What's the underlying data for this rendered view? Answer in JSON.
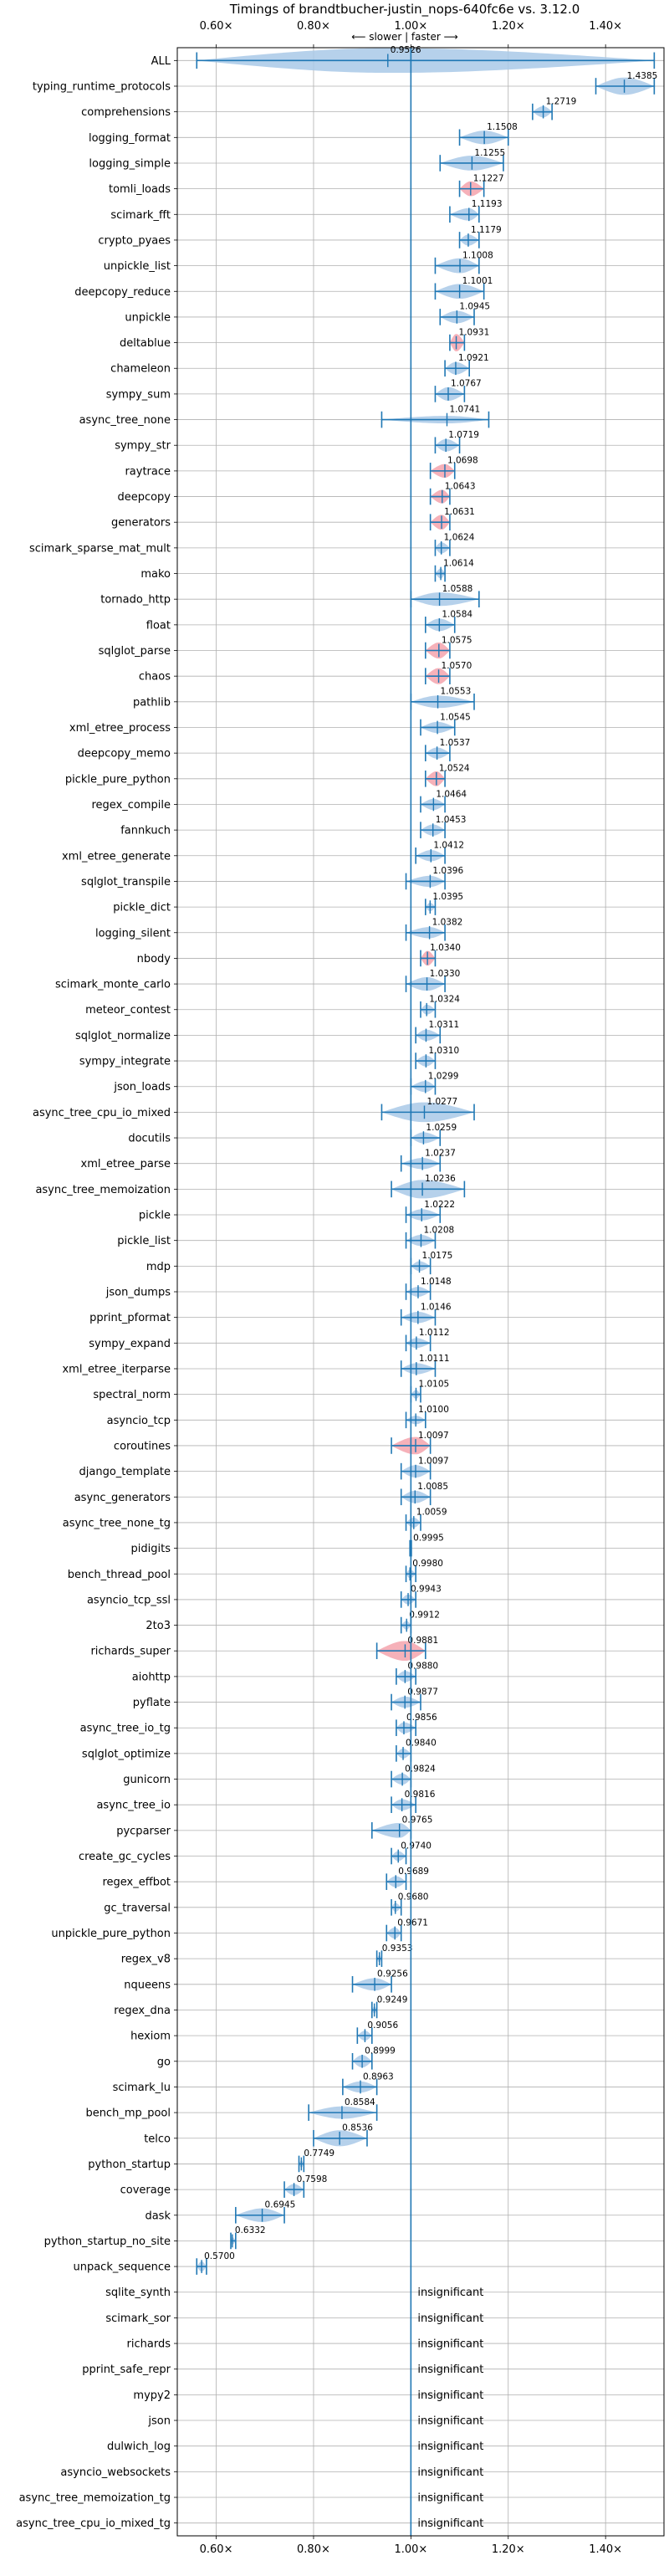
{
  "chart_data": {
    "type": "violin",
    "title": "Timings of brandtbucher-justin_nops-640fc6e vs. 3.12.0",
    "direction_label": "⟵ slower | faster ⟶",
    "xlim": [
      0.52,
      1.52
    ],
    "x_ticks": [
      0.6,
      0.8,
      1.0,
      1.2,
      1.4
    ],
    "x_tick_labels": [
      "0.60×",
      "0.80×",
      "1.00×",
      "1.20×",
      "1.40×"
    ],
    "reference_line": 1.0,
    "grid": true,
    "insignificant_label": "insignificant",
    "colors": {
      "violin": "#a9c9e8",
      "violin_regression": "#f5a3ad",
      "whisker": "#1f77b4",
      "grid": "#b0b0b0"
    },
    "benchmarks": [
      {
        "name": "ALL",
        "value": 0.9526,
        "label": "0.9526",
        "lo": 0.56,
        "hi": 1.5,
        "w": 1.0,
        "regression": false
      },
      {
        "name": "typing_runtime_protocols",
        "value": 1.4385,
        "label": "1.4385",
        "lo": 1.38,
        "hi": 1.5,
        "w": 0.7,
        "regression": false
      },
      {
        "name": "comprehensions",
        "value": 1.2719,
        "label": "1.2719",
        "lo": 1.25,
        "hi": 1.29,
        "w": 0.45,
        "regression": false
      },
      {
        "name": "logging_format",
        "value": 1.1508,
        "label": "1.1508",
        "lo": 1.1,
        "hi": 1.2,
        "w": 0.55,
        "regression": false
      },
      {
        "name": "logging_simple",
        "value": 1.1255,
        "label": "1.1255",
        "lo": 1.06,
        "hi": 1.19,
        "w": 0.6,
        "regression": false
      },
      {
        "name": "tomli_loads",
        "value": 1.1227,
        "label": "1.1227",
        "lo": 1.1,
        "hi": 1.15,
        "w": 0.6,
        "regression": true
      },
      {
        "name": "scimark_fft",
        "value": 1.1193,
        "label": "1.1193",
        "lo": 1.08,
        "hi": 1.14,
        "w": 0.5,
        "regression": false
      },
      {
        "name": "crypto_pyaes",
        "value": 1.1179,
        "label": "1.1179",
        "lo": 1.1,
        "hi": 1.14,
        "w": 0.45,
        "regression": false
      },
      {
        "name": "unpickle_list",
        "value": 1.1008,
        "label": "1.1008",
        "lo": 1.05,
        "hi": 1.14,
        "w": 0.6,
        "regression": false
      },
      {
        "name": "deepcopy_reduce",
        "value": 1.1001,
        "label": "1.1001",
        "lo": 1.05,
        "hi": 1.15,
        "w": 0.6,
        "regression": false
      },
      {
        "name": "unpickle",
        "value": 1.0945,
        "label": "1.0945",
        "lo": 1.06,
        "hi": 1.13,
        "w": 0.5,
        "regression": false
      },
      {
        "name": "deltablue",
        "value": 1.0931,
        "label": "1.0931",
        "lo": 1.08,
        "hi": 1.11,
        "w": 0.7,
        "regression": true
      },
      {
        "name": "chameleon",
        "value": 1.0921,
        "label": "1.0921",
        "lo": 1.07,
        "hi": 1.12,
        "w": 0.5,
        "regression": false
      },
      {
        "name": "sympy_sum",
        "value": 1.0767,
        "label": "1.0767",
        "lo": 1.05,
        "hi": 1.11,
        "w": 0.55,
        "regression": false
      },
      {
        "name": "async_tree_none",
        "value": 1.0741,
        "label": "1.0741",
        "lo": 0.94,
        "hi": 1.16,
        "w": 0.3,
        "regression": false
      },
      {
        "name": "sympy_str",
        "value": 1.0719,
        "label": "1.0719",
        "lo": 1.05,
        "hi": 1.1,
        "w": 0.5,
        "regression": false
      },
      {
        "name": "raytrace",
        "value": 1.0698,
        "label": "1.0698",
        "lo": 1.04,
        "hi": 1.09,
        "w": 0.55,
        "regression": true
      },
      {
        "name": "deepcopy",
        "value": 1.0643,
        "label": "1.0643",
        "lo": 1.04,
        "hi": 1.08,
        "w": 0.55,
        "regression": true
      },
      {
        "name": "generators",
        "value": 1.0631,
        "label": "1.0631",
        "lo": 1.04,
        "hi": 1.08,
        "w": 0.6,
        "regression": true
      },
      {
        "name": "scimark_sparse_mat_mult",
        "value": 1.0624,
        "label": "1.0624",
        "lo": 1.05,
        "hi": 1.08,
        "w": 0.45,
        "regression": false
      },
      {
        "name": "mako",
        "value": 1.0614,
        "label": "1.0614",
        "lo": 1.05,
        "hi": 1.07,
        "w": 0.4,
        "regression": false
      },
      {
        "name": "tornado_http",
        "value": 1.0588,
        "label": "1.0588",
        "lo": 1.0,
        "hi": 1.14,
        "w": 0.55,
        "regression": false
      },
      {
        "name": "float",
        "value": 1.0584,
        "label": "1.0584",
        "lo": 1.03,
        "hi": 1.09,
        "w": 0.5,
        "regression": false
      },
      {
        "name": "sqlglot_parse",
        "value": 1.0575,
        "label": "1.0575",
        "lo": 1.03,
        "hi": 1.08,
        "w": 0.65,
        "regression": true
      },
      {
        "name": "chaos",
        "value": 1.057,
        "label": "1.0570",
        "lo": 1.03,
        "hi": 1.08,
        "w": 0.65,
        "regression": true
      },
      {
        "name": "pathlib",
        "value": 1.0553,
        "label": "1.0553",
        "lo": 1.0,
        "hi": 1.13,
        "w": 0.5,
        "regression": false
      },
      {
        "name": "xml_etree_process",
        "value": 1.0545,
        "label": "1.0545",
        "lo": 1.02,
        "hi": 1.09,
        "w": 0.45,
        "regression": false
      },
      {
        "name": "deepcopy_memo",
        "value": 1.0537,
        "label": "1.0537",
        "lo": 1.03,
        "hi": 1.08,
        "w": 0.45,
        "regression": false
      },
      {
        "name": "pickle_pure_python",
        "value": 1.0524,
        "label": "1.0524",
        "lo": 1.03,
        "hi": 1.07,
        "w": 0.6,
        "regression": true
      },
      {
        "name": "regex_compile",
        "value": 1.0464,
        "label": "1.0464",
        "lo": 1.02,
        "hi": 1.07,
        "w": 0.45,
        "regression": false
      },
      {
        "name": "fannkuch",
        "value": 1.0453,
        "label": "1.0453",
        "lo": 1.02,
        "hi": 1.07,
        "w": 0.45,
        "regression": false
      },
      {
        "name": "xml_etree_generate",
        "value": 1.0412,
        "label": "1.0412",
        "lo": 1.01,
        "hi": 1.07,
        "w": 0.45,
        "regression": false
      },
      {
        "name": "sqlglot_transpile",
        "value": 1.0396,
        "label": "1.0396",
        "lo": 0.99,
        "hi": 1.07,
        "w": 0.45,
        "regression": false
      },
      {
        "name": "pickle_dict",
        "value": 1.0395,
        "label": "1.0395",
        "lo": 1.03,
        "hi": 1.05,
        "w": 0.35,
        "regression": false
      },
      {
        "name": "logging_silent",
        "value": 1.0382,
        "label": "1.0382",
        "lo": 0.99,
        "hi": 1.07,
        "w": 0.45,
        "regression": false
      },
      {
        "name": "nbody",
        "value": 1.034,
        "label": "1.0340",
        "lo": 1.02,
        "hi": 1.05,
        "w": 0.6,
        "regression": true
      },
      {
        "name": "scimark_monte_carlo",
        "value": 1.033,
        "label": "1.0330",
        "lo": 0.99,
        "hi": 1.07,
        "w": 0.55,
        "regression": false
      },
      {
        "name": "meteor_contest",
        "value": 1.0324,
        "label": "1.0324",
        "lo": 1.02,
        "hi": 1.05,
        "w": 0.4,
        "regression": false
      },
      {
        "name": "sqlglot_normalize",
        "value": 1.0311,
        "label": "1.0311",
        "lo": 1.01,
        "hi": 1.06,
        "w": 0.45,
        "regression": false
      },
      {
        "name": "sympy_integrate",
        "value": 1.031,
        "label": "1.0310",
        "lo": 1.01,
        "hi": 1.05,
        "w": 0.45,
        "regression": false
      },
      {
        "name": "json_loads",
        "value": 1.0299,
        "label": "1.0299",
        "lo": 1.0,
        "hi": 1.05,
        "w": 0.45,
        "regression": false
      },
      {
        "name": "async_tree_cpu_io_mixed",
        "value": 1.0277,
        "label": "1.0277",
        "lo": 0.94,
        "hi": 1.13,
        "w": 0.8,
        "regression": false
      },
      {
        "name": "docutils",
        "value": 1.0259,
        "label": "1.0259",
        "lo": 1.0,
        "hi": 1.06,
        "w": 0.45,
        "regression": false
      },
      {
        "name": "xml_etree_parse",
        "value": 1.0237,
        "label": "1.0237",
        "lo": 0.98,
        "hi": 1.06,
        "w": 0.45,
        "regression": false
      },
      {
        "name": "async_tree_memoization",
        "value": 1.0236,
        "label": "1.0236",
        "lo": 0.96,
        "hi": 1.11,
        "w": 0.75,
        "regression": false
      },
      {
        "name": "pickle",
        "value": 1.0222,
        "label": "1.0222",
        "lo": 0.99,
        "hi": 1.06,
        "w": 0.45,
        "regression": false
      },
      {
        "name": "pickle_list",
        "value": 1.0208,
        "label": "1.0208",
        "lo": 0.99,
        "hi": 1.05,
        "w": 0.45,
        "regression": false
      },
      {
        "name": "mdp",
        "value": 1.0175,
        "label": "1.0175",
        "lo": 1.0,
        "hi": 1.04,
        "w": 0.4,
        "regression": false
      },
      {
        "name": "json_dumps",
        "value": 1.0148,
        "label": "1.0148",
        "lo": 0.99,
        "hi": 1.04,
        "w": 0.4,
        "regression": false
      },
      {
        "name": "pprint_pformat",
        "value": 1.0146,
        "label": "1.0146",
        "lo": 0.98,
        "hi": 1.05,
        "w": 0.45,
        "regression": false
      },
      {
        "name": "sympy_expand",
        "value": 1.0112,
        "label": "1.0112",
        "lo": 0.99,
        "hi": 1.04,
        "w": 0.4,
        "regression": false
      },
      {
        "name": "xml_etree_iterparse",
        "value": 1.0111,
        "label": "1.0111",
        "lo": 0.98,
        "hi": 1.05,
        "w": 0.45,
        "regression": false
      },
      {
        "name": "spectral_norm",
        "value": 1.0105,
        "label": "1.0105",
        "lo": 1.0,
        "hi": 1.02,
        "w": 0.35,
        "regression": false
      },
      {
        "name": "asyncio_tcp",
        "value": 1.01,
        "label": "1.0100",
        "lo": 0.99,
        "hi": 1.03,
        "w": 0.35,
        "regression": false
      },
      {
        "name": "coroutines",
        "value": 1.0097,
        "label": "1.0097",
        "lo": 0.96,
        "hi": 1.04,
        "w": 0.7,
        "regression": true
      },
      {
        "name": "django_template",
        "value": 1.0097,
        "label": "1.0097",
        "lo": 0.98,
        "hi": 1.04,
        "w": 0.5,
        "regression": false
      },
      {
        "name": "async_generators",
        "value": 1.0085,
        "label": "1.0085",
        "lo": 0.98,
        "hi": 1.04,
        "w": 0.5,
        "regression": false
      },
      {
        "name": "async_tree_none_tg",
        "value": 1.0059,
        "label": "1.0059",
        "lo": 0.99,
        "hi": 1.02,
        "w": 0.4,
        "regression": false
      },
      {
        "name": "pidigits",
        "value": 0.9995,
        "label": "0.9995",
        "lo": 0.998,
        "hi": 1.001,
        "w": 0.2,
        "regression": false
      },
      {
        "name": "bench_thread_pool",
        "value": 0.998,
        "label": "0.9980",
        "lo": 0.99,
        "hi": 1.01,
        "w": 0.35,
        "regression": false
      },
      {
        "name": "asyncio_tcp_ssl",
        "value": 0.9943,
        "label": "0.9943",
        "lo": 0.98,
        "hi": 1.01,
        "w": 0.4,
        "regression": false
      },
      {
        "name": "2to3",
        "value": 0.9912,
        "label": "0.9912",
        "lo": 0.98,
        "hi": 1.0,
        "w": 0.35,
        "regression": false
      },
      {
        "name": "richards_super",
        "value": 0.9881,
        "label": "0.9881",
        "lo": 0.93,
        "hi": 1.03,
        "w": 0.8,
        "regression": true
      },
      {
        "name": "aiohttp",
        "value": 0.988,
        "label": "0.9880",
        "lo": 0.97,
        "hi": 1.01,
        "w": 0.45,
        "regression": false
      },
      {
        "name": "pyflate",
        "value": 0.9877,
        "label": "0.9877",
        "lo": 0.96,
        "hi": 1.02,
        "w": 0.45,
        "regression": false
      },
      {
        "name": "async_tree_io_tg",
        "value": 0.9856,
        "label": "0.9856",
        "lo": 0.97,
        "hi": 1.01,
        "w": 0.45,
        "regression": false
      },
      {
        "name": "sqlglot_optimize",
        "value": 0.984,
        "label": "0.9840",
        "lo": 0.97,
        "hi": 1.0,
        "w": 0.4,
        "regression": false
      },
      {
        "name": "gunicorn",
        "value": 0.9824,
        "label": "0.9824",
        "lo": 0.96,
        "hi": 1.0,
        "w": 0.45,
        "regression": false
      },
      {
        "name": "async_tree_io",
        "value": 0.9816,
        "label": "0.9816",
        "lo": 0.96,
        "hi": 1.01,
        "w": 0.45,
        "regression": false
      },
      {
        "name": "pycparser",
        "value": 0.9765,
        "label": "0.9765",
        "lo": 0.92,
        "hi": 1.0,
        "w": 0.6,
        "regression": false
      },
      {
        "name": "create_gc_cycles",
        "value": 0.974,
        "label": "0.9740",
        "lo": 0.96,
        "hi": 0.99,
        "w": 0.4,
        "regression": false
      },
      {
        "name": "regex_effbot",
        "value": 0.9689,
        "label": "0.9689",
        "lo": 0.95,
        "hi": 0.99,
        "w": 0.45,
        "regression": false
      },
      {
        "name": "gc_traversal",
        "value": 0.968,
        "label": "0.9680",
        "lo": 0.96,
        "hi": 0.98,
        "w": 0.35,
        "regression": false
      },
      {
        "name": "unpickle_pure_python",
        "value": 0.9671,
        "label": "0.9671",
        "lo": 0.95,
        "hi": 0.98,
        "w": 0.45,
        "regression": false
      },
      {
        "name": "regex_v8",
        "value": 0.9353,
        "label": "0.9353",
        "lo": 0.93,
        "hi": 0.94,
        "w": 0.3,
        "regression": false
      },
      {
        "name": "nqueens",
        "value": 0.9256,
        "label": "0.9256",
        "lo": 0.88,
        "hi": 0.96,
        "w": 0.5,
        "regression": false
      },
      {
        "name": "regex_dna",
        "value": 0.9249,
        "label": "0.9249",
        "lo": 0.92,
        "hi": 0.93,
        "w": 0.3,
        "regression": false
      },
      {
        "name": "hexiom",
        "value": 0.9056,
        "label": "0.9056",
        "lo": 0.89,
        "hi": 0.92,
        "w": 0.4,
        "regression": false
      },
      {
        "name": "go",
        "value": 0.8999,
        "label": "0.8999",
        "lo": 0.88,
        "hi": 0.92,
        "w": 0.5,
        "regression": false
      },
      {
        "name": "scimark_lu",
        "value": 0.8963,
        "label": "0.8963",
        "lo": 0.86,
        "hi": 0.93,
        "w": 0.45,
        "regression": false
      },
      {
        "name": "bench_mp_pool",
        "value": 0.8584,
        "label": "0.8584",
        "lo": 0.79,
        "hi": 0.93,
        "w": 0.5,
        "regression": false
      },
      {
        "name": "telco",
        "value": 0.8536,
        "label": "0.8536",
        "lo": 0.8,
        "hi": 0.91,
        "w": 0.65,
        "regression": false
      },
      {
        "name": "python_startup",
        "value": 0.7749,
        "label": "0.7749",
        "lo": 0.77,
        "hi": 0.78,
        "w": 0.3,
        "regression": false
      },
      {
        "name": "coverage",
        "value": 0.7598,
        "label": "0.7598",
        "lo": 0.74,
        "hi": 0.78,
        "w": 0.45,
        "regression": false
      },
      {
        "name": "dask",
        "value": 0.6945,
        "label": "0.6945",
        "lo": 0.64,
        "hi": 0.74,
        "w": 0.55,
        "regression": false
      },
      {
        "name": "python_startup_no_site",
        "value": 0.6332,
        "label": "0.6332",
        "lo": 0.63,
        "hi": 0.64,
        "w": 0.3,
        "regression": false
      },
      {
        "name": "unpack_sequence",
        "value": 0.57,
        "label": "0.5700",
        "lo": 0.56,
        "hi": 0.58,
        "w": 0.4,
        "regression": false
      },
      {
        "name": "sqlite_synth",
        "insignificant": true
      },
      {
        "name": "scimark_sor",
        "insignificant": true
      },
      {
        "name": "richards",
        "insignificant": true
      },
      {
        "name": "pprint_safe_repr",
        "insignificant": true
      },
      {
        "name": "mypy2",
        "insignificant": true
      },
      {
        "name": "json",
        "insignificant": true
      },
      {
        "name": "dulwich_log",
        "insignificant": true
      },
      {
        "name": "asyncio_websockets",
        "insignificant": true
      },
      {
        "name": "async_tree_memoization_tg",
        "insignificant": true
      },
      {
        "name": "async_tree_cpu_io_mixed_tg",
        "insignificant": true
      }
    ]
  }
}
